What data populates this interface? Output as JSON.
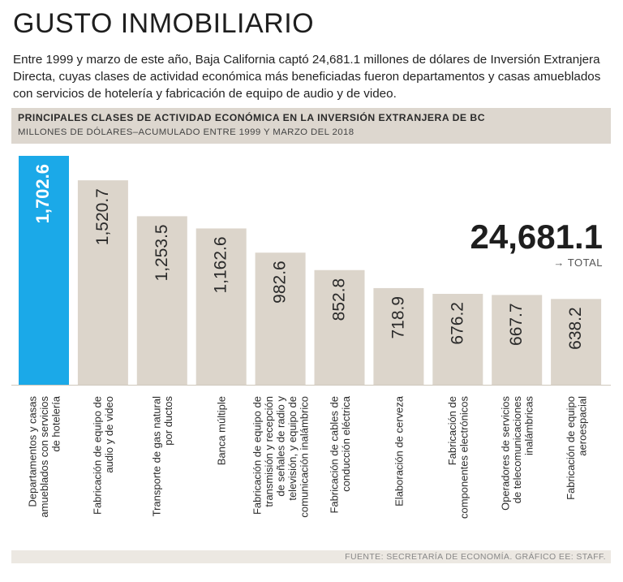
{
  "headline": "GUSTO INMOBILIARIO",
  "intro": "Entre 1999 y marzo de este año, Baja California captó 24,681.1 millones de dólares de Inversión Extranjera Directa, cuyas clases de actividad económica más beneficiadas fueron departamentos y casas amueblados con servicios de hotelería y fabricación de equipo de audio y de video.",
  "chart_data": {
    "type": "bar",
    "title": "PRINCIPALES CLASES DE ACTIVIDAD ECONÓMICA EN LA INVERSIÓN EXTRANJERA DE BC",
    "subtitle": "MILLONES DE DÓLARES–ACUMULADO ENTRE 1999 Y MARZO DEL 2018",
    "ylabel": "Millones de dólares",
    "ylim": [
      0,
      1702.6
    ],
    "categories": [
      [
        "Departamentos y casas",
        "amueblados con servicios",
        "de hotelería"
      ],
      [
        "Fabricación de equipo de",
        "audio y de video"
      ],
      [
        "Transporte de gas natural",
        "por ductos"
      ],
      [
        "Banca múltiple"
      ],
      [
        "Fabricación de equipo de",
        "transmisión y recepción",
        "de señales de radio y",
        "televisión, y equipo de",
        "comunicación inalámbrico"
      ],
      [
        "Fabricación de cables de",
        "conducción eléctrica"
      ],
      [
        "Elaboración de cerveza"
      ],
      [
        "Fabricación de",
        "componentes electrónicos"
      ],
      [
        "Operadores de servicios",
        "de telecomunicaciones",
        "inalámbricas"
      ],
      [
        "Fabricación de equipo",
        "aeroespacial"
      ]
    ],
    "values": [
      1702.6,
      1520.7,
      1253.5,
      1162.6,
      982.6,
      852.8,
      718.9,
      676.2,
      667.7,
      638.2
    ],
    "value_labels": [
      "1,702.6",
      "1,520.7",
      "1,253.5",
      "1,162.6",
      "982.6",
      "852.8",
      "718.9",
      "676.2",
      "667.7",
      "638.2"
    ],
    "highlight_index": 0,
    "total_value": "24,681.1",
    "total_label": "→ TOTAL",
    "colors": {
      "highlight": "#1ba9e8",
      "bar": "#dcd5cb",
      "text": "#2a2a2a",
      "highlight_text": "#ffffff"
    }
  },
  "source": "FUENTE: SECRETARÍA DE ECONOMÍA. GRÁFICO EE: STAFF."
}
